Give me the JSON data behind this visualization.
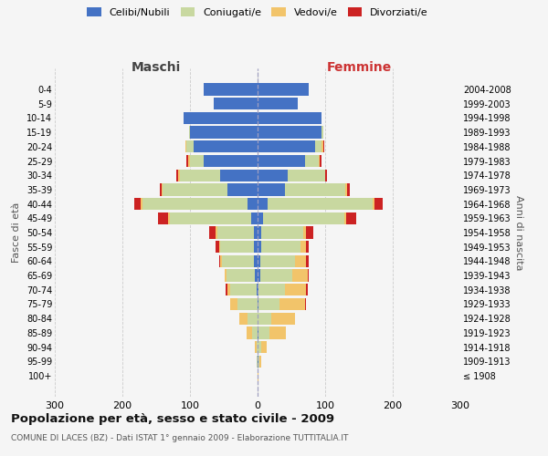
{
  "age_groups": [
    "0-4",
    "5-9",
    "10-14",
    "15-19",
    "20-24",
    "25-29",
    "30-34",
    "35-39",
    "40-44",
    "45-49",
    "50-54",
    "55-59",
    "60-64",
    "65-69",
    "70-74",
    "75-79",
    "80-84",
    "85-89",
    "90-94",
    "95-99",
    "100+"
  ],
  "birth_years": [
    "2004-2008",
    "1999-2003",
    "1994-1998",
    "1989-1993",
    "1984-1988",
    "1979-1983",
    "1974-1978",
    "1969-1973",
    "1964-1968",
    "1959-1963",
    "1954-1958",
    "1949-1953",
    "1944-1948",
    "1939-1943",
    "1934-1938",
    "1929-1933",
    "1924-1928",
    "1919-1923",
    "1914-1918",
    "1909-1913",
    "≤ 1908"
  ],
  "male": {
    "celibi": [
      80,
      65,
      110,
      100,
      95,
      80,
      55,
      45,
      15,
      10,
      5,
      5,
      5,
      4,
      2,
      0,
      0,
      0,
      0,
      0,
      0
    ],
    "coniugati": [
      0,
      0,
      0,
      2,
      10,
      20,
      60,
      95,
      155,
      120,
      55,
      50,
      48,
      42,
      38,
      30,
      15,
      8,
      2,
      1,
      0
    ],
    "vedovi": [
      0,
      0,
      0,
      0,
      2,
      3,
      2,
      2,
      3,
      2,
      2,
      2,
      2,
      3,
      5,
      10,
      12,
      8,
      2,
      0,
      0
    ],
    "divorziati": [
      0,
      0,
      0,
      0,
      0,
      2,
      3,
      2,
      10,
      15,
      10,
      5,
      2,
      0,
      2,
      0,
      0,
      0,
      0,
      0,
      0
    ]
  },
  "female": {
    "nubili": [
      75,
      60,
      95,
      95,
      85,
      70,
      45,
      40,
      15,
      8,
      5,
      5,
      4,
      4,
      2,
      2,
      0,
      2,
      0,
      1,
      0
    ],
    "coniugate": [
      0,
      0,
      0,
      2,
      10,
      20,
      55,
      90,
      155,
      120,
      62,
      58,
      52,
      48,
      38,
      30,
      20,
      15,
      5,
      2,
      0
    ],
    "vedove": [
      0,
      0,
      0,
      0,
      2,
      2,
      0,
      2,
      3,
      3,
      5,
      8,
      15,
      22,
      32,
      38,
      35,
      25,
      8,
      3,
      1
    ],
    "divorziate": [
      0,
      0,
      0,
      0,
      2,
      2,
      3,
      5,
      12,
      15,
      10,
      5,
      4,
      2,
      2,
      2,
      0,
      0,
      0,
      0,
      0
    ]
  },
  "colors": {
    "celibi": "#4472C4",
    "coniugati": "#C8D8A0",
    "vedovi": "#F2C46A",
    "divorziati": "#CC2222"
  },
  "title": "Popolazione per età, sesso e stato civile - 2009",
  "subtitle": "COMUNE DI LACES (BZ) - Dati ISTAT 1° gennaio 2009 - Elaborazione TUTTITALIA.IT",
  "xlabel_left": "Maschi",
  "xlabel_right": "Femmine",
  "ylabel_left": "Fasce di età",
  "ylabel_right": "Anni di nascita",
  "xlim": 300,
  "background_color": "#f5f5f5",
  "grid_color": "#cccccc"
}
